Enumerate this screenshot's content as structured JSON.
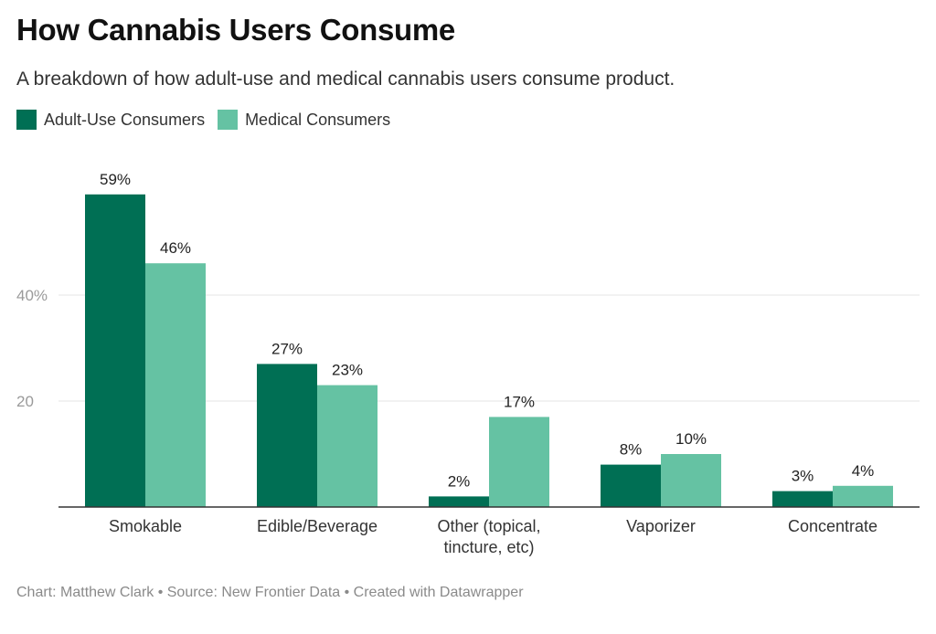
{
  "title": "How Cannabis Users Consume",
  "subtitle": "A breakdown of how adult-use and medical cannabis users consume product.",
  "footer": "Chart: Matthew Clark • Source: New Frontier Data • Created with Datawrapper",
  "colors": {
    "adult": "#006f54",
    "medical": "#65c2a3",
    "grid": "#e6e6e6",
    "baseline": "#333333"
  },
  "chart_data": {
    "type": "bar",
    "title": "How Cannabis Users Consume",
    "subtitle": "A breakdown of how adult-use and medical cannabis users consume product.",
    "categories": [
      [
        "Smokable"
      ],
      [
        "Edible/Beverage"
      ],
      [
        "Other (topical,",
        "tincture, etc)"
      ],
      [
        "Vaporizer"
      ],
      [
        "Concentrate"
      ]
    ],
    "series": [
      {
        "name": "Adult-Use Consumers",
        "values": [
          59,
          27,
          2,
          8,
          3
        ],
        "labels": [
          "59%",
          "27%",
          "2%",
          "8%",
          "3%"
        ]
      },
      {
        "name": "Medical Consumers",
        "values": [
          46,
          23,
          17,
          10,
          4
        ],
        "labels": [
          "46%",
          "23%",
          "17%",
          "10%",
          "4%"
        ]
      }
    ],
    "yticks": [
      {
        "value": 20,
        "label": "20"
      },
      {
        "value": 40,
        "label": "40%"
      }
    ],
    "ylim": [
      0,
      59
    ],
    "grid": true,
    "legend": "top-left"
  }
}
